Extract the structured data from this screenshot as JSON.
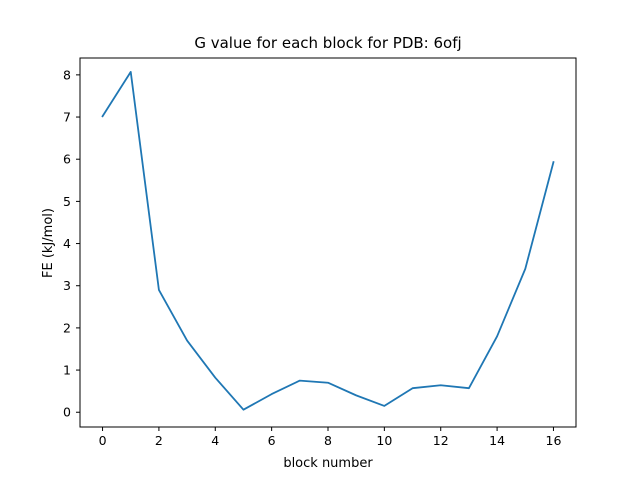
{
  "chart_data": {
    "type": "line",
    "title": "G value for each block for PDB: 6ofj",
    "xlabel": "block number",
    "ylabel": "FE (kJ/mol)",
    "x": [
      0,
      1,
      2,
      3,
      4,
      5,
      6,
      7,
      8,
      9,
      10,
      11,
      12,
      13,
      14,
      15,
      16
    ],
    "series": [
      {
        "values": [
          7.02,
          8.07,
          2.9,
          1.7,
          0.82,
          0.06,
          0.43,
          0.75,
          0.7,
          0.4,
          0.15,
          0.57,
          0.64,
          0.57,
          1.8,
          3.4,
          5.93
        ],
        "color": "#1f77b4"
      }
    ],
    "xlim": [
      -0.8,
      16.8
    ],
    "ylim": [
      -0.35,
      8.4
    ],
    "xticks": [
      "0",
      "2",
      "4",
      "6",
      "8",
      "10",
      "12",
      "14",
      "16"
    ],
    "yticks": [
      "0",
      "1",
      "2",
      "3",
      "4",
      "5",
      "6",
      "7",
      "8"
    ],
    "grid": false,
    "legend": "none"
  }
}
